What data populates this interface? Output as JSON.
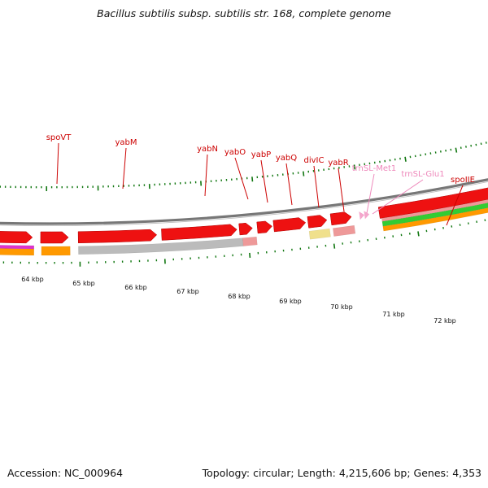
{
  "title": "Bacillus subtilis subsp. subtilis str. 168, complete genome",
  "footer": {
    "accession": "Accession: NC_000964",
    "summary": "Topology: circular; Length: 4,215,606 bp; Genes: 4,353"
  },
  "colors": {
    "cds": "#ee1111",
    "trna": "#f4a6cc",
    "orange": "#ff9900",
    "green": "#33cc33",
    "magenta": "#dd33cc",
    "grey": "#bbbbbb",
    "pink": "#ee9999",
    "yellow": "#f0e08c",
    "backbone": "#888888",
    "tick": "#117711",
    "gene_label": "#cc0000",
    "trna_label": "#ee88bb"
  },
  "kbp_labels": [
    "64 kbp",
    "65 kbp",
    "66 kbp",
    "67 kbp",
    "68 kbp",
    "69 kbp",
    "70 kbp",
    "71 kbp",
    "72 kbp"
  ],
  "gene_labels": [
    {
      "name": "spoVT",
      "type": "gene"
    },
    {
      "name": "yabM",
      "type": "gene"
    },
    {
      "name": "yabN",
      "type": "gene"
    },
    {
      "name": "yabO",
      "type": "gene"
    },
    {
      "name": "yabP",
      "type": "gene"
    },
    {
      "name": "yabQ",
      "type": "gene"
    },
    {
      "name": "divIC",
      "type": "gene"
    },
    {
      "name": "yabR",
      "type": "gene"
    },
    {
      "name": "trnSL-Met1",
      "type": "trna"
    },
    {
      "name": "trnSL-Glu1",
      "type": "trna"
    },
    {
      "name": "spoIIE",
      "type": "gene"
    }
  ]
}
